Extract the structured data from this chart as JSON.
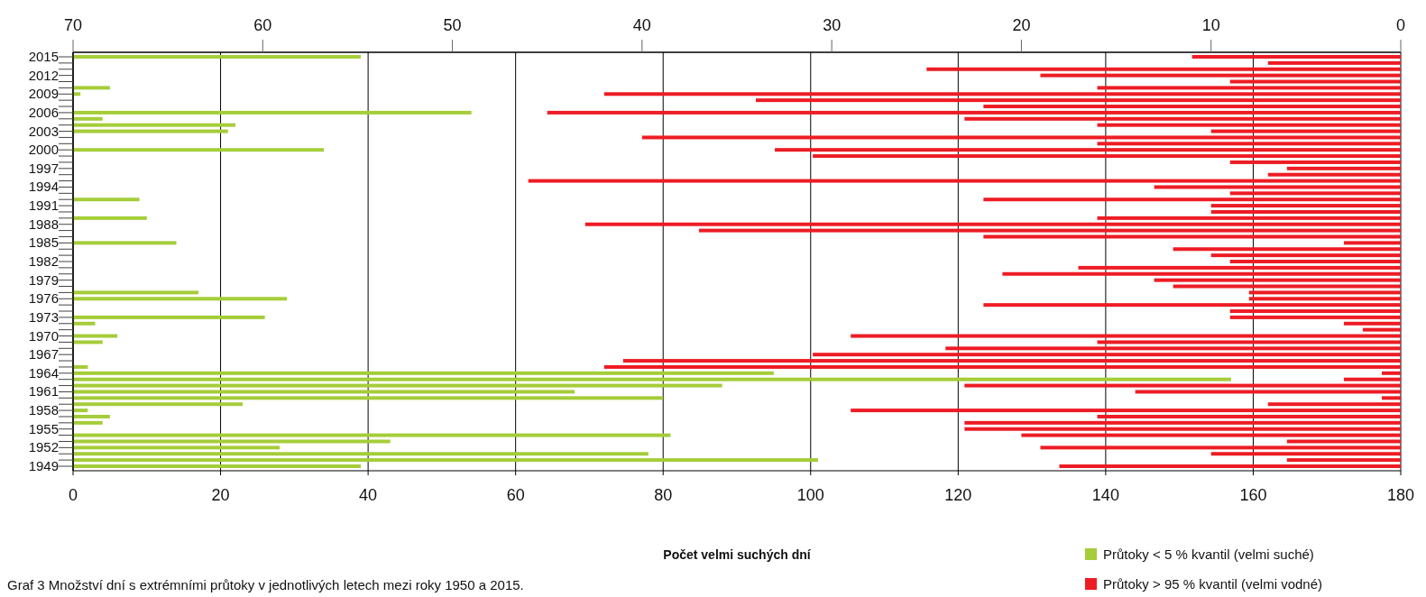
{
  "chart_data": {
    "type": "bar",
    "orientation": "horizontal",
    "categories": [
      "2015",
      null,
      null,
      "2012",
      null,
      null,
      "2009",
      null,
      null,
      "2006",
      null,
      null,
      "2003",
      null,
      null,
      "2000",
      null,
      null,
      "1997",
      null,
      null,
      "1994",
      null,
      null,
      "1991",
      null,
      null,
      "1988",
      null,
      null,
      "1985",
      null,
      null,
      "1982",
      null,
      null,
      "1979",
      null,
      null,
      "1976",
      null,
      null,
      "1973",
      null,
      null,
      "1970",
      null,
      null,
      "1967",
      null,
      null,
      "1964",
      null,
      null,
      "1961",
      null,
      null,
      "1958",
      null,
      null,
      "1955",
      null,
      null,
      "1952",
      null,
      null,
      "1949"
    ],
    "series": [
      {
        "name": "Průtoky < 5 % kvantil (velmi suché)",
        "color": "#a5cd39",
        "values": [
          39,
          0,
          0,
          0,
          0,
          5,
          1,
          0,
          0,
          54,
          4,
          22,
          21,
          0,
          0,
          34,
          0,
          0,
          0,
          0,
          0,
          0,
          0,
          9,
          0,
          0,
          10,
          0,
          0,
          0,
          14,
          0,
          0,
          0,
          0,
          0,
          0,
          0,
          17,
          29,
          0,
          0,
          26,
          3,
          0,
          6,
          4,
          0,
          0,
          0,
          2,
          95,
          157,
          88,
          68,
          80,
          23,
          2,
          5,
          4,
          0,
          81,
          43,
          28,
          78,
          101,
          39
        ]
      },
      {
        "name": "Průtoky > 95 % kvantil (velmi vodné)",
        "color": "#ed1c24",
        "axis": "x2",
        "values": [
          11,
          7,
          25,
          19,
          9,
          16,
          42,
          34,
          22,
          45,
          23,
          16,
          10,
          40,
          16,
          33,
          31,
          9,
          6,
          7,
          46,
          13,
          9,
          22,
          10,
          10,
          16,
          43,
          37,
          22,
          3,
          12,
          10,
          9,
          17,
          21,
          13,
          12,
          8,
          8,
          22,
          9,
          9,
          3,
          2,
          29,
          16,
          24,
          31,
          41,
          42,
          1,
          3,
          23,
          14,
          1,
          7,
          29,
          16,
          23,
          23,
          20,
          6,
          19,
          10,
          6,
          18
        ]
      }
    ],
    "xlim": [
      0,
      180
    ],
    "xticks": [
      0,
      20,
      40,
      60,
      80,
      100,
      120,
      140,
      160,
      180
    ],
    "x2lim": [
      70,
      0
    ],
    "x2ticks": [
      70,
      60,
      50,
      40,
      30,
      20,
      10,
      0
    ],
    "xlabel": "Počet velmi suchých dní",
    "grid": "x",
    "legend": "bottom right",
    "annotations": [
      "Graf 3  Množství dní s extrémními průtoky v jednotlivých letech mezi roky 1950 a 2015."
    ]
  }
}
